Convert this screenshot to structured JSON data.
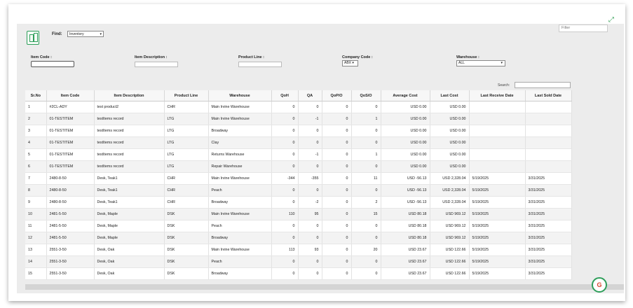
{
  "find": {
    "label": "Find:",
    "value": "Inventory"
  },
  "filters": {
    "item_code": "Item Code :",
    "item_description": "Item Description :",
    "product_line": "Product Line :",
    "company_code": "Company Code :",
    "company_value": "ABX",
    "warehouse": "Warehouse :",
    "warehouse_value": "ALL"
  },
  "filter_placeholder": "Filter",
  "search_label": "Search:",
  "table": {
    "columns": [
      "Sr.No",
      "Item Code",
      "Item Description",
      "Product Line",
      "Warehouse",
      "QoH",
      "QA",
      "QoP/O",
      "QoS/O",
      "Average Cost",
      "Last Cost",
      "Last Receive Date",
      "Last Sold Date"
    ],
    "rows": [
      [
        "1",
        "#2CL-ADY",
        "test product2",
        "CHR",
        "Main Irvine Warehouse",
        "0",
        "0",
        "0",
        "0",
        "USD 0.00",
        "USD 0.00",
        "",
        ""
      ],
      [
        "2",
        "01-TESTITEM",
        "testItems record",
        "LTG",
        "Main Irvine Warehouse",
        "0",
        "-1",
        "0",
        "1",
        "USD 0.00",
        "USD 0.00",
        "",
        ""
      ],
      [
        "3",
        "01-TESTITEM",
        "testItems record",
        "LTG",
        "Broadway",
        "0",
        "0",
        "0",
        "0",
        "USD 0.00",
        "USD 0.00",
        "",
        ""
      ],
      [
        "4",
        "01-TESTITEM",
        "testItems record",
        "LTG",
        "Clay",
        "0",
        "0",
        "0",
        "0",
        "USD 0.00",
        "USD 0.00",
        "",
        ""
      ],
      [
        "5",
        "01-TESTITEM",
        "testItems record",
        "LTG",
        "Returns Warehouse",
        "0",
        "-1",
        "0",
        "1",
        "USD 0.00",
        "USD 0.00",
        "",
        ""
      ],
      [
        "6",
        "01-TESTITEM",
        "testItems record",
        "LTG",
        "Repair Warehouse",
        "0",
        "0",
        "0",
        "0",
        "USD 0.00",
        "USD 0.00",
        "",
        ""
      ],
      [
        "7",
        "2480-8-50",
        "Desk, Teak1",
        "CHR",
        "Main Irvine Warehouse",
        "-344",
        "-355",
        "0",
        "11",
        "USD -56.13",
        "USD 2,328.04",
        "5/19/2025",
        "3/31/2025"
      ],
      [
        "8",
        "2480-8-50",
        "Desk, Teak1",
        "CHR",
        "Peach",
        "0",
        "0",
        "0",
        "0",
        "USD -56.13",
        "USD 2,328.04",
        "5/19/2025",
        "3/31/2025"
      ],
      [
        "9",
        "2480-8-50",
        "Desk, Teak1",
        "CHR",
        "Broadway",
        "0",
        "-2",
        "0",
        "2",
        "USD -56.13",
        "USD 2,328.04",
        "5/19/2025",
        "3/31/2025"
      ],
      [
        "10",
        "2481-5-50",
        "Desk, Maple",
        "DSK",
        "Main Irvine Warehouse",
        "110",
        "95",
        "0",
        "15",
        "USD 80.18",
        "USD 969.12",
        "5/19/2025",
        "3/31/2025"
      ],
      [
        "11",
        "2481-5-50",
        "Desk, Maple",
        "DSK",
        "Peach",
        "0",
        "0",
        "0",
        "0",
        "USD 80.18",
        "USD 969.12",
        "5/19/2025",
        "3/31/2025"
      ],
      [
        "12",
        "2481-5-50",
        "Desk, Maple",
        "DSK",
        "Broadway",
        "0",
        "0",
        "0",
        "0",
        "USD 80.18",
        "USD 969.12",
        "5/19/2025",
        "3/31/2025"
      ],
      [
        "13",
        "2551-3-50",
        "Desk, Oak",
        "DSK",
        "Main Irvine Warehouse",
        "113",
        "93",
        "0",
        "20",
        "USD 23.67",
        "USD 122.66",
        "5/19/2025",
        "3/31/2025"
      ],
      [
        "14",
        "2551-3-50",
        "Desk, Oak",
        "DSK",
        "Peach",
        "0",
        "0",
        "0",
        "0",
        "USD 23.67",
        "USD 122.66",
        "5/19/2025",
        "3/31/2025"
      ],
      [
        "15",
        "2551-3-50",
        "Desk, Oak",
        "DSK",
        "Broadway",
        "0",
        "0",
        "0",
        "0",
        "USD 23.67",
        "USD 122.66",
        "5/19/2025",
        "3/31/2025"
      ]
    ]
  },
  "icons": {
    "logo": "inventory-logo-icon",
    "expand": "expand-icon",
    "help": "help-chat-icon"
  },
  "colors": {
    "accent": "#2e9e5a",
    "link": "#2e9e5a"
  }
}
